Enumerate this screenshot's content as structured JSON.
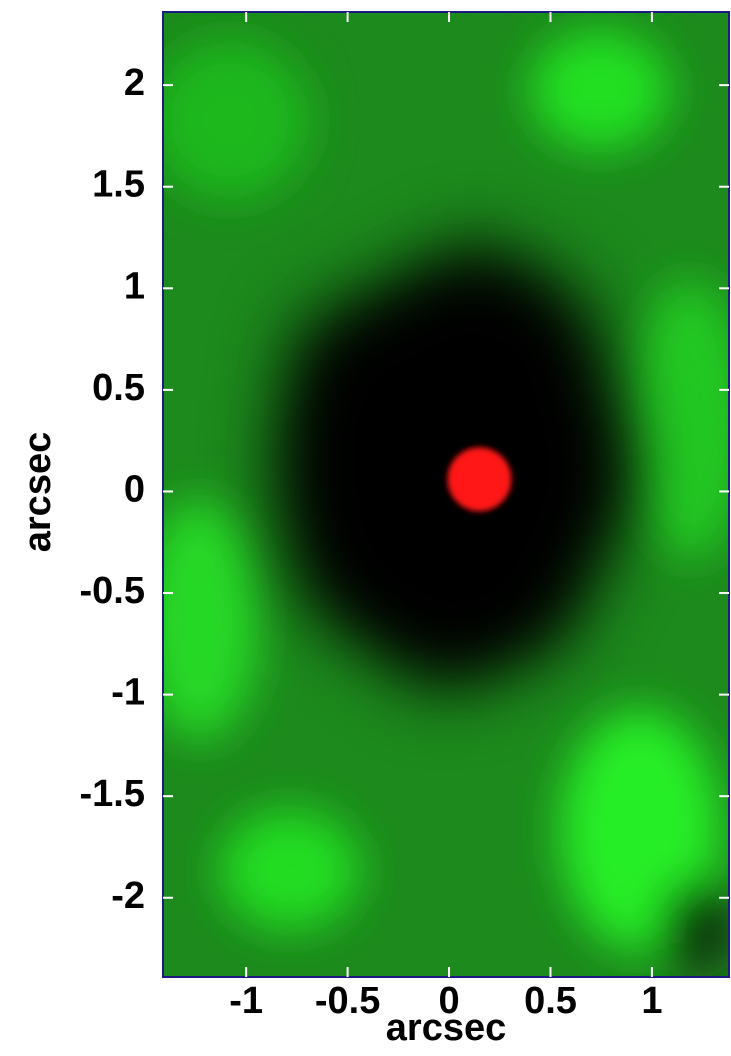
{
  "chart_data": {
    "type": "image",
    "x_label": "arcsec",
    "y_label": "arcsec",
    "xlim": [
      -1.41,
      1.38
    ],
    "ylim": [
      -2.39,
      2.36
    ],
    "xticks": [
      -1,
      -0.5,
      0,
      0.5,
      1
    ],
    "yticks": [
      -2,
      -1.5,
      -1,
      -0.5,
      0,
      0.5,
      1,
      1.5,
      2
    ],
    "series": [
      {
        "color": "#ff1414",
        "x": [
          0.15
        ],
        "values": [
          0.06
        ]
      }
    ]
  }
}
